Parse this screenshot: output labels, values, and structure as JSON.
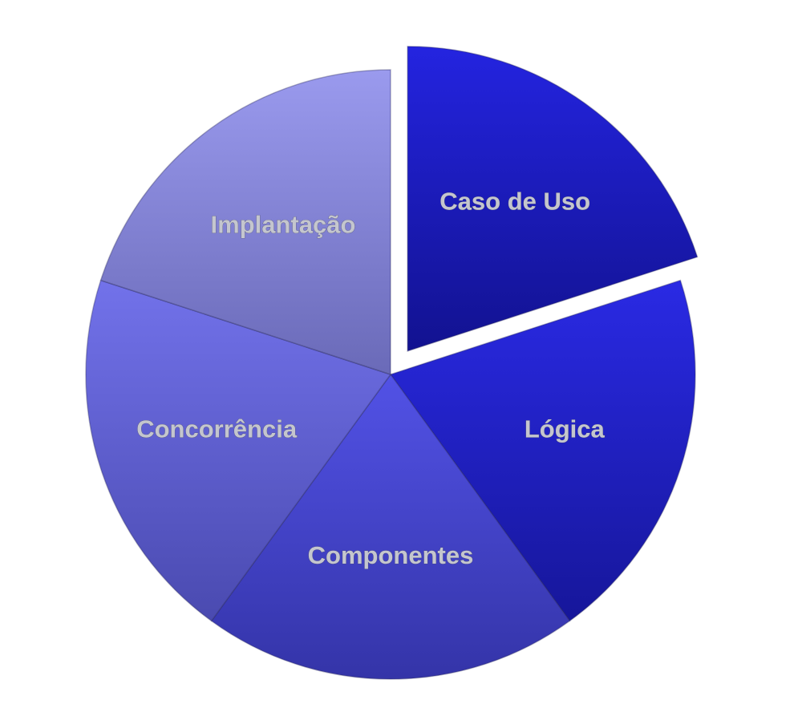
{
  "chart_data": {
    "type": "pie",
    "title": "",
    "exploded": [
      "Caso de Uso"
    ],
    "slices": [
      {
        "label": "Caso de Uso",
        "value": 20,
        "color_top": "#2424e0",
        "color_bottom": "#121290"
      },
      {
        "label": "Lógica",
        "value": 20,
        "color_top": "#2a2ae4",
        "color_bottom": "#16169a"
      },
      {
        "label": "Componentes",
        "value": 20,
        "color_top": "#5252e6",
        "color_bottom": "#3434a8"
      },
      {
        "label": "Concorrência",
        "value": 20,
        "color_top": "#7272ea",
        "color_bottom": "#4a4ab0"
      },
      {
        "label": "Implantação",
        "value": 20,
        "color_top": "#9a9aee",
        "color_bottom": "#6a6ab8"
      }
    ],
    "legend": "none"
  }
}
